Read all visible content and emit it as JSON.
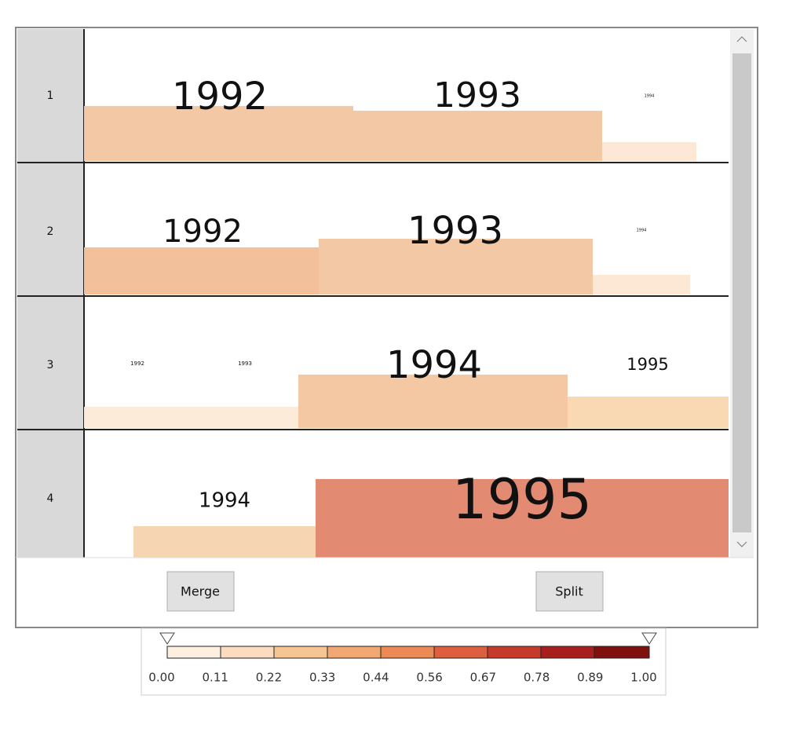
{
  "rows": [
    {
      "label": "1",
      "cells": [
        "1992",
        "1993",
        "1994"
      ]
    },
    {
      "label": "2",
      "cells": [
        "1992",
        "1993",
        "1994"
      ]
    },
    {
      "label": "3",
      "cells": [
        "1992",
        "1993",
        "1994",
        "1995"
      ]
    },
    {
      "label": "4",
      "cells": [
        "1994",
        "1995"
      ]
    }
  ],
  "buttons": [
    "Merge",
    "Split"
  ],
  "legend": {
    "ticks": [
      "0.00",
      "0.11",
      "0.22",
      "0.33",
      "0.44",
      "0.56",
      "0.67",
      "0.78",
      "0.89",
      "1.00"
    ]
  }
}
